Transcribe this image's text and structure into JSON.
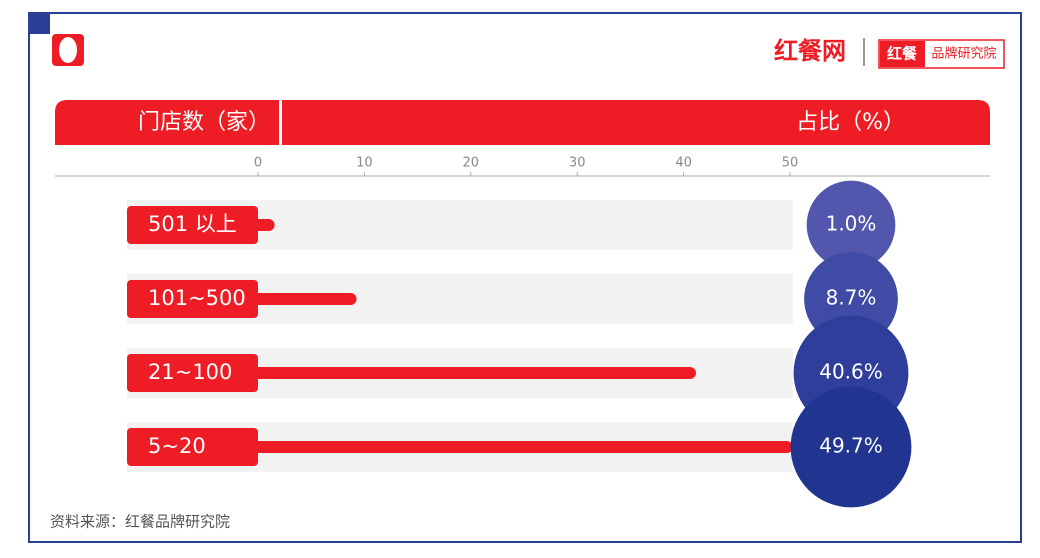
{
  "chart_data": {
    "type": "bar",
    "orientation": "horizontal",
    "header_left": "门店数（家）",
    "header_right": "占比（%）",
    "categories": [
      "501 以上",
      "101~500",
      "21~100",
      "5~20"
    ],
    "values": [
      1.0,
      8.7,
      40.6,
      49.7
    ],
    "value_labels": [
      "1.0%",
      "8.7%",
      "40.6%",
      "49.7%"
    ],
    "color": "#ee1c25",
    "marker_colors": [
      "#5257ad",
      "#3f4ba5",
      "#2f3e9b",
      "#213490"
    ],
    "xlim": [
      0,
      50
    ],
    "xticks": [
      0,
      10,
      20,
      30,
      40,
      50
    ],
    "source": "资料来源：红餐品牌研究院"
  },
  "logo": {
    "brand": "红餐网",
    "badge": "红餐",
    "institute": "品牌研究院"
  }
}
